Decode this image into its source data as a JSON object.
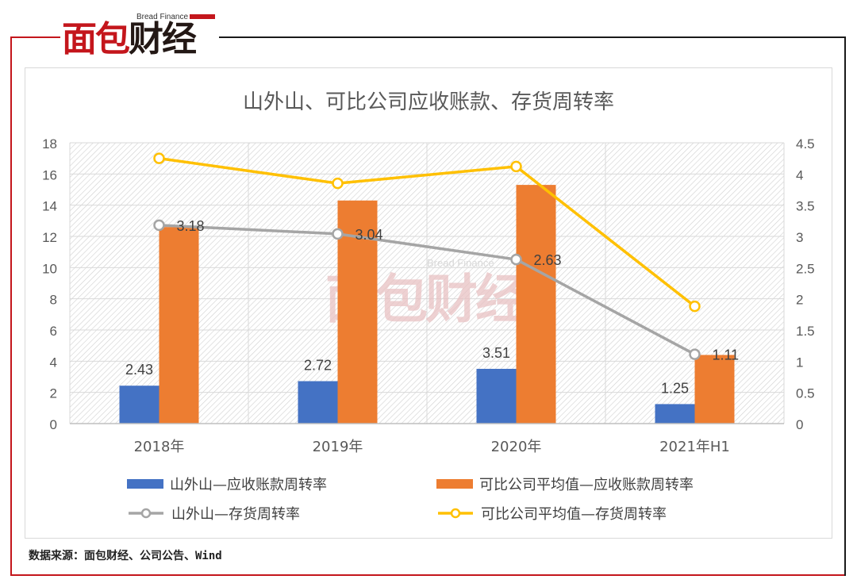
{
  "brand": {
    "logo_text_a": "面包",
    "logo_text_b": "财经",
    "logo_sub": "Bread Finance",
    "watermark_main": "面包财经",
    "watermark_sub": "Bread Finance",
    "accent": "#c4161c"
  },
  "source_note": "数据来源：面包财经、公司公告、Wind",
  "chart_data": {
    "type": "bar",
    "title": "山外山、可比公司应收账款、存货周转率",
    "categories": [
      "2018年",
      "2019年",
      "2020年",
      "2021年H1"
    ],
    "grid": true,
    "legend_position": "bottom",
    "y_left": {
      "ylim": [
        0,
        18
      ],
      "ticks": [
        "0",
        "2",
        "4",
        "6",
        "8",
        "10",
        "12",
        "14",
        "16",
        "18"
      ]
    },
    "y_right": {
      "ylim": [
        0,
        4.5
      ],
      "ticks": [
        "0",
        "0.5",
        "1",
        "1.5",
        "2",
        "2.5",
        "3",
        "3.5",
        "4",
        "4.5"
      ]
    },
    "series": [
      {
        "name": "山外山—应收账款周转率",
        "kind": "bar",
        "axis": "left",
        "color": "#4472c4",
        "values": [
          2.43,
          2.72,
          3.51,
          1.25
        ],
        "labels": [
          "2.43",
          "2.72",
          "3.51",
          "1.25"
        ]
      },
      {
        "name": "可比公司平均值—应收账款周转率",
        "kind": "bar",
        "axis": "left",
        "color": "#ed7d31",
        "values": [
          12.6,
          14.3,
          15.3,
          4.4
        ]
      },
      {
        "name": "山外山—存货周转率",
        "kind": "line",
        "axis": "right",
        "color": "#a5a5a5",
        "values": [
          3.18,
          3.04,
          2.63,
          1.11
        ],
        "labels": [
          "3.18",
          "3.04",
          "2.63",
          "1.11"
        ]
      },
      {
        "name": "可比公司平均值—存货周转率",
        "kind": "line",
        "axis": "right",
        "color": "#ffc000",
        "values": [
          4.25,
          3.85,
          4.12,
          1.88
        ]
      }
    ]
  }
}
